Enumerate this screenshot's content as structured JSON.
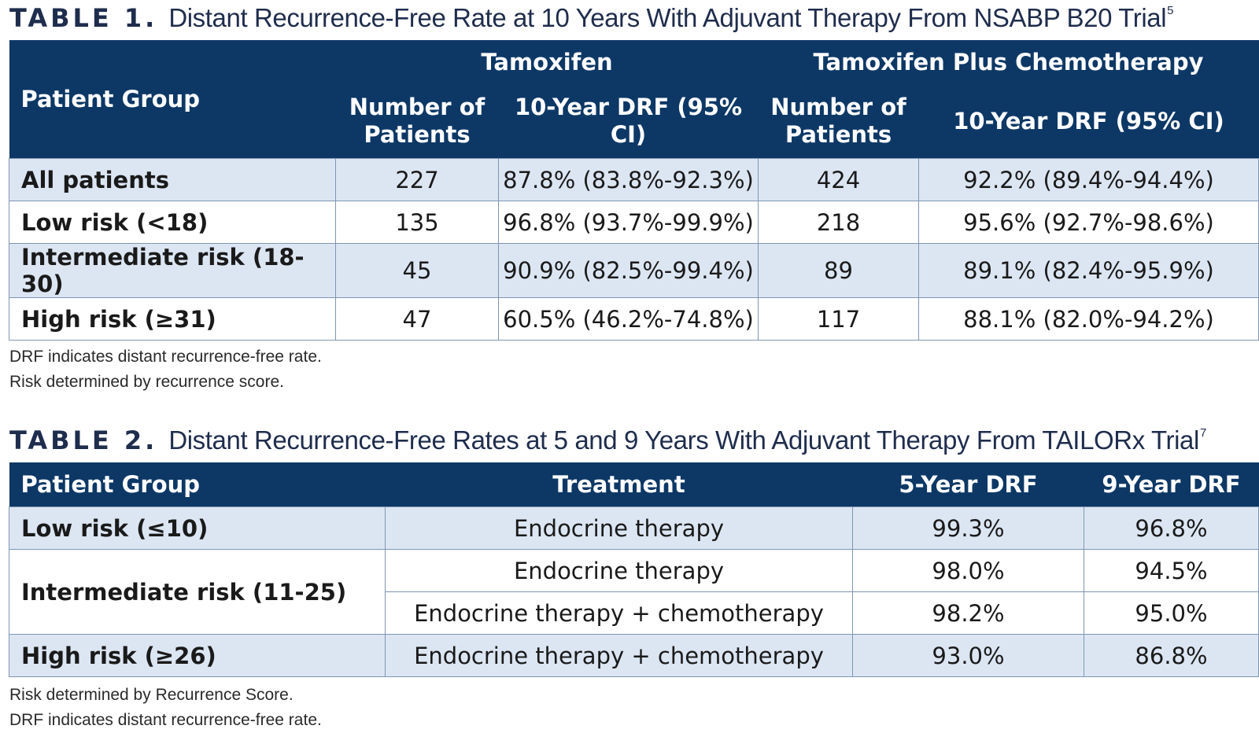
{
  "table1": {
    "label": "TABLE 1.",
    "title": "Distant Recurrence-Free Rate at 10 Years With Adjuvant Therapy From NSABP B20 Trial",
    "ref": "5",
    "group_header": "Patient Group",
    "arm1_header": "Tamoxifen",
    "arm2_header": "Tamoxifen Plus Chemotherapy",
    "col_patients": "Number of Patients",
    "col_drf": "10-Year DRF (95% CI)",
    "rows": [
      {
        "group": "All patients",
        "tam_n": "227",
        "tam_drf": "87.8% (83.8%-92.3%)",
        "chemo_n": "424",
        "chemo_drf": "92.2% (89.4%-94.4%)"
      },
      {
        "group": "Low risk (<18)",
        "tam_n": "135",
        "tam_drf": "96.8% (93.7%-99.9%)",
        "chemo_n": "218",
        "chemo_drf": "95.6% (92.7%-98.6%)"
      },
      {
        "group": "Intermediate risk (18-30)",
        "tam_n": "45",
        "tam_drf": "90.9% (82.5%-99.4%)",
        "chemo_n": "89",
        "chemo_drf": "89.1% (82.4%-95.9%)"
      },
      {
        "group": "High risk (≥31)",
        "tam_n": "47",
        "tam_drf": "60.5% (46.2%-74.8%)",
        "chemo_n": "117",
        "chemo_drf": "88.1% (82.0%-94.2%)"
      }
    ],
    "notes": [
      "DRF indicates distant recurrence-free rate.",
      "Risk determined by recurrence score."
    ]
  },
  "table2": {
    "label": "TABLE 2.",
    "title": "Distant Recurrence-Free Rates at 5 and 9 Years With Adjuvant Therapy From TAILORx Trial",
    "ref": "7",
    "headers": [
      "Patient Group",
      "Treatment",
      "5-Year DRF",
      "9-Year DRF"
    ],
    "rows": [
      {
        "group": "Low risk (≤10)",
        "treatment": "Endocrine therapy",
        "drf5": "99.3%",
        "drf9": "96.8%"
      },
      {
        "group": "Intermediate risk (11-25)",
        "treatment": "Endocrine therapy",
        "drf5": "98.0%",
        "drf9": "94.5%"
      },
      {
        "group": "",
        "treatment": "Endocrine therapy + chemotherapy",
        "drf5": "98.2%",
        "drf9": "95.0%"
      },
      {
        "group": "High risk (≥26)",
        "treatment": "Endocrine therapy + chemotherapy",
        "drf5": "93.0%",
        "drf9": "86.8%"
      }
    ],
    "notes": [
      "Risk determined by Recurrence Score.",
      "DRF indicates distant recurrence-free rate."
    ]
  }
}
